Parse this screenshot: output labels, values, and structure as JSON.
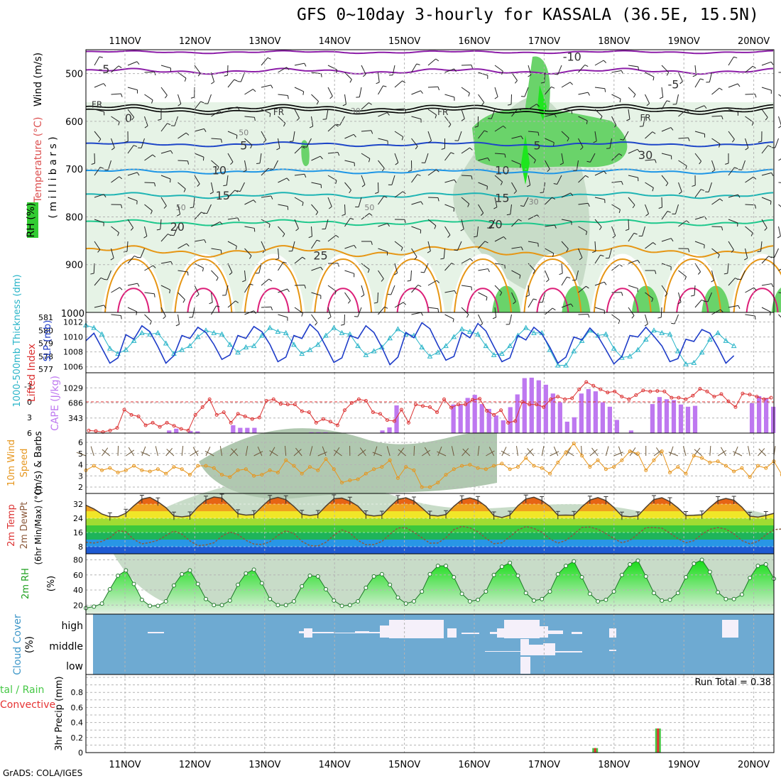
{
  "title": "GFS 0~10day 3-hourly for KASSALA (36.5E, 15.5N)",
  "credit": "GrADS: COLA/IGES",
  "colors": {
    "rh_light": "#e6f3e6",
    "rh_mid": "#c8dcc8",
    "rh_dark": "#b0c8b0",
    "rh_green": "#6ad36a",
    "rh_bright": "#1ee61e",
    "iso_purple": "#8c1ea8",
    "iso_fr": "#000000",
    "iso_blue": "#1e46c8",
    "iso_sky": "#1e96e6",
    "iso_teal": "#1eb4b4",
    "iso_green": "#1ec88c",
    "iso_orange": "#e69614",
    "iso_red": "#dc1e78",
    "slp": "#1e3cc8",
    "thickness": "#28b4c8",
    "lifted": "#dc3232",
    "cape": "#be78f0",
    "wind": "#e6961e",
    "barb": "#6e5a3c",
    "precip_total": "#46c846",
    "precip_conv": "#e63232",
    "cloud_bg": "#6eaad2",
    "cloud_fill": "#f5f0fa"
  },
  "chart_data": [
    {
      "panel": "upper_air",
      "type": "heatmap",
      "x_labels": [
        "11NOV",
        "12NOV",
        "13NOV",
        "14NOV",
        "15NOV",
        "16NOV",
        "17NOV",
        "18NOV",
        "19NOV",
        "20NOV"
      ],
      "y_ticks": [
        500,
        600,
        700,
        800,
        900,
        1000
      ],
      "ylim": [
        450,
        1000
      ],
      "ylabel_parts": [
        "Wind (m/s)",
        "Temperature (°C)",
        "RH (%)",
        "( m i l l i b a r s )"
      ],
      "isotherm_labels": [
        {
          "text": "-5",
          "level": 490,
          "day": -0.3
        },
        {
          "text": "-10",
          "level": 464,
          "day": 6.4
        },
        {
          "text": "-5",
          "level": 522,
          "day": 7.85
        },
        {
          "text": "FR",
          "level": 562,
          "day": -0.4
        },
        {
          "text": "FR",
          "level": 578,
          "day": 2.2
        },
        {
          "text": "FR",
          "level": 578,
          "day": 4.55
        },
        {
          "text": "FR",
          "level": 590,
          "day": 7.45
        },
        {
          "text": "5",
          "level": 650,
          "day": 1.7
        },
        {
          "text": "5",
          "level": 650,
          "day": 5.9
        },
        {
          "text": "10",
          "level": 702,
          "day": 1.35
        },
        {
          "text": "10",
          "level": 702,
          "day": 5.4
        },
        {
          "text": "15",
          "level": 755,
          "day": 1.4
        },
        {
          "text": "15",
          "level": 760,
          "day": 5.4
        },
        {
          "text": "20",
          "level": 820,
          "day": 0.75
        },
        {
          "text": "20",
          "level": 815,
          "day": 5.3
        },
        {
          "text": "25",
          "level": 880,
          "day": 2.8
        },
        {
          "text": "0",
          "level": 593,
          "day": 0.05
        },
        {
          "text": "30",
          "level": 670,
          "day": 7.45
        }
      ],
      "rh_labels": [
        {
          "text": "50",
          "level": 623,
          "day": 1.7
        },
        {
          "text": "30",
          "level": 578,
          "day": 3.3
        },
        {
          "text": "50",
          "level": 780,
          "day": 0.8
        },
        {
          "text": "50",
          "level": 780,
          "day": 3.5
        },
        {
          "text": "30",
          "level": 768,
          "day": 5.85
        }
      ]
    },
    {
      "panel": "slp_thickness",
      "type": "line",
      "ylabel_left": "1000-500mb Thickness (dm)",
      "ylabel_right": "SLP (mb)",
      "thickness_ticks": [
        577,
        578,
        579,
        580,
        581
      ],
      "slp_ticks": [
        1006,
        1008,
        1010,
        1012
      ],
      "series": [
        {
          "name": "SLP (mb)",
          "values": [
            1009.5,
            1010.5,
            1008.5,
            1006.5,
            1007.2,
            1010.3,
            1009.7,
            1011.5,
            1010.7,
            1008.7,
            1006.5,
            1007.5,
            1010.2,
            1009.8,
            1011.3,
            1010.6,
            1009.0,
            1007.0,
            1007.6,
            1010.2,
            1009.8,
            1011.4,
            1010.7,
            1009.0,
            1006.7,
            1007.3,
            1010.2,
            1009.8,
            1011.7,
            1010.7,
            1008.7,
            1006.6,
            1007.2,
            1010.2,
            1009.8,
            1011.5,
            1010.6,
            1008.6,
            1006.3,
            1007.3,
            1010.6,
            1009.9,
            1011.9,
            1011.1,
            1008.9,
            1006.9,
            1007.4,
            1010.6,
            1009.9,
            1011.8,
            1010.8,
            1008.7,
            1006.7,
            1007.2,
            1010.2,
            1009.6,
            1011.3,
            1010.4,
            1008.6,
            1006.5,
            1007.3,
            1010.0,
            1009.6,
            1011.2,
            1010.1,
            1008.3,
            1006.4,
            1007.4,
            1010.2,
            1010.0,
            1011.3,
            1010.1,
            1008.8,
            1006.7,
            1007.1,
            1009.7,
            1009.4,
            1011.0,
            1010.5,
            1008.6,
            1006.5,
            1007.5
          ]
        },
        {
          "name": "1000-500mb Thickness (dm)",
          "values": [
            580.4,
            580.2,
            579.7,
            578.6,
            578.2,
            578.5,
            579.2,
            579.8,
            579.7,
            579.8,
            579.0,
            578.2,
            578.5,
            578.8,
            579.5,
            580.0,
            579.8,
            579.7,
            578.9,
            578.3,
            578.7,
            578.8,
            579.6,
            580.2,
            579.9,
            579.8,
            578.9,
            578.2,
            578.5,
            578.9,
            579.6,
            580.2,
            579.8,
            579.7,
            578.8,
            578.1,
            578.4,
            578.7,
            579.4,
            580.1,
            579.7,
            579.6,
            578.7,
            578.0,
            578.3,
            578.8,
            579.5,
            580.1,
            579.9,
            579.7,
            578.8,
            578.1,
            578.2,
            578.8,
            579.6,
            580.2,
            579.8,
            579.8,
            578.5,
            577.3,
            577.3,
            578.4,
            579.2,
            580.0,
            579.6,
            579.7,
            578.6,
            577.9,
            578.0,
            578.5,
            579.3,
            580.0,
            579.8,
            579.7,
            578.4,
            577.4,
            577.5,
            578.3,
            579.3,
            579.8,
            579.2,
            578.8
          ]
        }
      ]
    },
    {
      "panel": "cape_lifted",
      "type": "bar",
      "ylabel_left": "Lifted Index",
      "ylabel_right": "CAPE (J/kg)",
      "lifted_ticks": [
        -3,
        0,
        3,
        6
      ],
      "cape_ticks": [
        343,
        686,
        1029
      ],
      "cape_values": [
        0,
        0,
        0,
        0,
        0,
        0,
        0,
        0,
        0,
        0,
        0,
        60,
        100,
        0,
        50,
        40,
        0,
        0,
        0,
        0,
        180,
        120,
        120,
        120,
        0,
        0,
        0,
        0,
        0,
        0,
        0,
        20,
        20,
        20,
        0,
        0,
        0,
        0,
        0,
        0,
        0,
        60,
        130,
        630,
        0,
        0,
        0,
        0,
        0,
        0,
        0,
        650,
        650,
        800,
        870,
        660,
        550,
        400,
        290,
        590,
        880,
        1250,
        1260,
        1200,
        1100,
        900,
        700,
        260,
        360,
        900,
        1000,
        950,
        700,
        600,
        300,
        0,
        60,
        0,
        0,
        660,
        820,
        770,
        750,
        650,
        600,
        620,
        0,
        0,
        0,
        0,
        0,
        0,
        0,
        680,
        840,
        800,
        600
      ],
      "lifted_values": [
        5.5,
        5.6,
        5.8,
        5.5,
        5.0,
        1.5,
        2.5,
        2.8,
        4.5,
        4.0,
        4.8,
        4.0,
        4.6,
        5.2,
        5.5,
        2.5,
        1.0,
        -0.5,
        2.5,
        2.0,
        4.0,
        2.3,
        2.8,
        3.3,
        3.0,
        -0.2,
        -0.5,
        0.4,
        0.5,
        0.5,
        1.8,
        2.0,
        4.0,
        3.3,
        3.8,
        4.5,
        1.6,
        0.2,
        -0.5,
        -0.2,
        2.0,
        2.3,
        3.5,
        3.7,
        1.5,
        4.0,
        0.5,
        0.8,
        1.0,
        2.0,
        -0.5,
        1.1,
        0.5,
        0.5,
        -0.4,
        -0.6,
        1.7,
        2.5,
        1.6,
        4.0,
        3.7,
        0.0,
        0.5,
        0.5,
        1.0,
        -0.5,
        -1.0,
        -0.5,
        -0.7,
        -2.4,
        -3.8,
        -3.1,
        -2.4,
        -1.8,
        -2.0,
        -1.0,
        -0.5,
        -1.3,
        -2.2,
        -2.0,
        -2.1,
        -2.0,
        -0.8,
        -0.8,
        -0.5,
        -1.2,
        -2.5,
        -2.0,
        -1.0,
        -1.5,
        -0.1,
        1.0,
        -1.6,
        -1.4,
        -1.0,
        -0.5,
        -0.8
      ]
    },
    {
      "panel": "wind10m",
      "type": "line",
      "ylabel": "10m Wind Speed (m/s) & Barbs",
      "y_ticks": [
        2,
        3,
        4,
        5,
        6
      ],
      "values": [
        3.5,
        3.9,
        3.5,
        3.7,
        3.3,
        3.5,
        3.9,
        3.5,
        3.4,
        3.6,
        3.2,
        3.8,
        3.6,
        3.1,
        3.9,
        3.9,
        3.7,
        3.1,
        2.9,
        3.5,
        3.6,
        3.0,
        3.1,
        3.5,
        3.3,
        4.4,
        3.9,
        3.2,
        3.8,
        3.5,
        4.5,
        3.6,
        2.4,
        2.6,
        2.7,
        3.2,
        3.6,
        3.8,
        4.4,
        2.8,
        3.8,
        3.5,
        2.0,
        2.0,
        2.4,
        3.1,
        3.6,
        3.9,
        4.0,
        3.7,
        3.6,
        3.9,
        4.1,
        3.6,
        3.8,
        4.6,
        3.9,
        3.7,
        3.2,
        4.2,
        5.1,
        5.9,
        4.8,
        3.8,
        4.4,
        3.6,
        3.8,
        4.4,
        5.2,
        5.0,
        3.5,
        4.4,
        5.2,
        3.3,
        3.8,
        3.2,
        4.8,
        4.6,
        4.2,
        4.3,
        3.9,
        3.4,
        3.7,
        2.9,
        3.9,
        3.7,
        4.3,
        3.1,
        3.5,
        3.0,
        2.6
      ]
    },
    {
      "panel": "temp2m",
      "type": "area",
      "ylabel": "2m Temp 2m DewPt (6hr Min/Max) (°C)",
      "y_ticks": [
        8,
        16,
        24,
        32
      ],
      "temp_values": [
        31.4,
        29.3,
        26.4,
        24.9,
        24.9,
        26.9,
        31.1,
        34.8,
        35.8,
        33.3,
        30.0,
        25.3,
        24.8,
        25.4,
        30.5,
        34.3,
        36.0,
        35.4,
        31.3,
        26.6,
        25.8,
        26.1,
        30.6,
        34.7,
        35.8,
        34.5,
        30.7,
        26.3,
        25.6,
        26.2,
        30.9,
        35.0,
        35.4,
        33.7,
        30.9,
        26.0,
        25.3,
        25.8,
        30.5,
        34.6,
        35.6,
        33.8,
        29.9,
        25.8,
        25.3,
        26.1,
        30.8,
        34.5,
        35.5,
        34.1,
        30.8,
        25.4,
        24.5,
        25.8,
        31.1,
        34.9,
        35.9,
        34.0,
        30.7,
        25.7,
        25.8,
        25.7,
        30.5,
        34.3,
        35.7,
        34.0,
        30.1,
        25.3,
        24.9,
        25.4,
        30.2,
        34.6,
        35.6,
        33.4,
        29.9,
        25.6,
        25.7,
        25.9,
        30.2,
        34.0,
        35.2,
        34.2,
        30.3,
        25.2,
        24.7,
        25.6,
        26.8
      ],
      "dewpt_values": [
        10.5,
        10.1,
        11.0,
        13.1,
        17.0,
        16.4,
        12.1,
        9.6,
        10.4,
        11.6,
        14.3,
        16.8,
        15.1,
        11.3,
        8.6,
        9.0,
        10.2,
        13.9,
        16.3,
        14.9,
        11.6,
        9.5,
        9.2,
        10.8,
        14.4,
        17.0,
        15.4,
        11.0,
        8.6,
        8.4,
        10.5,
        14.5,
        17.5,
        15.8,
        11.6,
        9.1,
        9.2,
        11.0,
        15.0,
        18.6,
        18.7,
        16.2,
        13.1,
        10.0,
        10.1,
        13.1,
        17.7,
        19.5,
        18.7,
        16.4,
        12.8,
        9.7,
        10.2,
        13.7,
        17.4,
        19.4,
        18.3,
        16.2,
        12.4,
        10.0,
        11.6,
        15.0,
        18.9,
        19.1,
        17.8,
        15.4,
        12.6,
        10.2,
        11.6,
        15.1,
        18.8,
        18.8,
        18.5,
        15.7,
        12.6,
        10.2,
        11.4,
        15.0,
        17.8,
        18.8,
        17.9,
        15.2,
        11.5,
        9.6,
        11.0,
        14.7,
        17.6,
        18.0,
        17.2
      ]
    },
    {
      "panel": "rh2m",
      "type": "area",
      "ylabel": "2m RH (%)",
      "y_ticks": [
        20,
        40,
        60,
        80
      ],
      "values": [
        16,
        18,
        22,
        41,
        59,
        66,
        48,
        27,
        19,
        19,
        25,
        46,
        61,
        66,
        48,
        28,
        20,
        20,
        26,
        47,
        62,
        67,
        49,
        28,
        20,
        20,
        25,
        45,
        59,
        58,
        41,
        26,
        19,
        20,
        25,
        43,
        58,
        61,
        47,
        30,
        22,
        25,
        38,
        61,
        72,
        72,
        57,
        35,
        25,
        27,
        38,
        60,
        71,
        76,
        59,
        36,
        26,
        28,
        38,
        61,
        72,
        78,
        57,
        35,
        25,
        27,
        38,
        60,
        74,
        79,
        58,
        36,
        26,
        27,
        36,
        57,
        75,
        80,
        64,
        37,
        28,
        28,
        34,
        56,
        72,
        74,
        55
      ]
    },
    {
      "panel": "cloud",
      "type": "heatmap",
      "ylabel": "Cloud Cover (%)",
      "y_labels": [
        "high",
        "middle",
        "low"
      ]
    },
    {
      "panel": "precip",
      "type": "bar",
      "ylabel": "3hr Precip (mm)",
      "ylabel_left": "Total / Rain Convective",
      "y_ticks": [
        0,
        0.2,
        0.4,
        0.6,
        0.8
      ],
      "run_total_label": "Run Total = 0.38",
      "bars": [
        {
          "day": 6.73,
          "total": 0.06,
          "convective": 0.06
        },
        {
          "day": 7.63,
          "total": 0.32,
          "convective": 0.32
        }
      ]
    }
  ]
}
